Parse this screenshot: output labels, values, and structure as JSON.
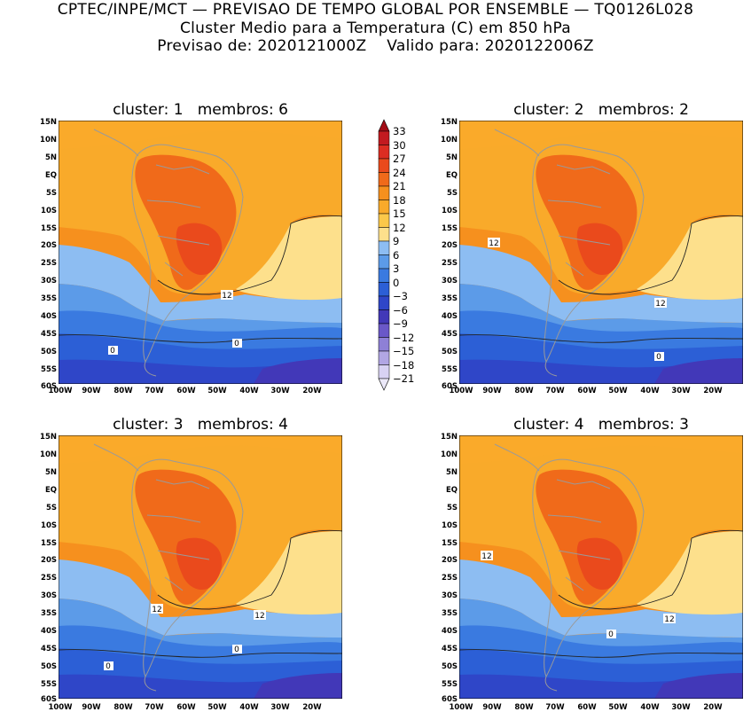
{
  "header": {
    "line1": "CPTEC/INPE/MCT — PREVISAO DE TEMPO GLOBAL POR ENSEMBLE — TQ0126L028",
    "line2": "Cluster Medio para a Temperatura (C) em 850 hPa",
    "line3": "Previsao de: 2020121000Z    Valido para: 2020122006Z"
  },
  "lat_labels": [
    "15N",
    "10N",
    "5N",
    "EQ",
    "5S",
    "10S",
    "15S",
    "20S",
    "25S",
    "30S",
    "35S",
    "40S",
    "45S",
    "50S",
    "55S",
    "60S"
  ],
  "lon_labels": [
    "100W",
    "90W",
    "80W",
    "70W",
    "60W",
    "50W",
    "40W",
    "30W",
    "20W"
  ],
  "panels": [
    {
      "title": "cluster: 1   membros: 6",
      "contour_labels": [
        "12",
        "0",
        "0"
      ]
    },
    {
      "title": "cluster: 2   membros: 2",
      "contour_labels": [
        "12",
        "12",
        "0"
      ]
    },
    {
      "title": "cluster: 3   membros: 4",
      "contour_labels": [
        "12",
        "12",
        "0",
        "0"
      ]
    },
    {
      "title": "cluster: 4   membros: 3",
      "contour_labels": [
        "12",
        "12",
        "0"
      ]
    }
  ],
  "colorbar": {
    "labels": [
      "33",
      "30",
      "27",
      "24",
      "21",
      "18",
      "15",
      "12",
      "9",
      "6",
      "3",
      "0",
      "−3",
      "−6",
      "−9",
      "−12",
      "−15",
      "−18",
      "−21"
    ],
    "colors": [
      "#a30d16",
      "#c21a20",
      "#dc2d22",
      "#ea4a1c",
      "#f06a1a",
      "#f6901e",
      "#f9aa2a",
      "#fbc84a",
      "#fde08c",
      "#8dbdf2",
      "#5c9be8",
      "#3a7ae0",
      "#2c5fd6",
      "#2f46c8",
      "#4238b8",
      "#6a58c8",
      "#8e80d6",
      "#b1a6e4",
      "#d8d2f3"
    ]
  }
}
